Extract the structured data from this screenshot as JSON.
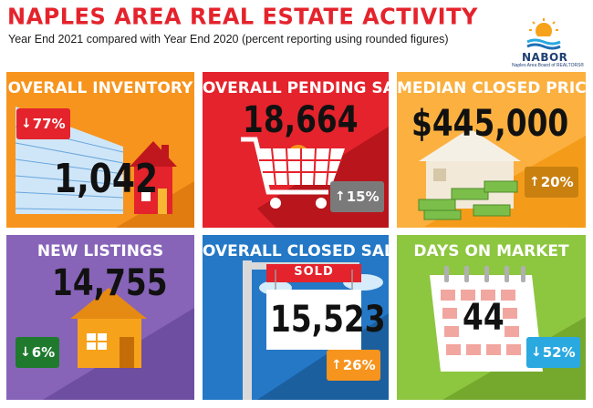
{
  "header": {
    "title": "NAPLES AREA REAL ESTATE ACTIVITY",
    "subtitle": "Year End 2021 compared with Year End 2020 (percent reporting using rounded figures)"
  },
  "logo": {
    "name": "NABOR",
    "tagline": "Naples Area Board of REALTORS®"
  },
  "tiles": {
    "inventory": {
      "title": "OVERALL INVENTORY",
      "value": "1,042",
      "change": "77%",
      "direction": "down",
      "color": "#f7941d"
    },
    "pending": {
      "title": "OVERALL PENDING SALES",
      "value": "18,664",
      "change": "15%",
      "direction": "up",
      "color": "#e4232c"
    },
    "price": {
      "title": "MEDIAN CLOSED PRICE",
      "value": "$445,000",
      "change": "20%",
      "direction": "up",
      "color": "#fbb040"
    },
    "listings": {
      "title": "NEW LISTINGS",
      "value": "14,755",
      "change": "6%",
      "direction": "down",
      "color": "#8764b8"
    },
    "closed": {
      "title": "OVERALL CLOSED SALES",
      "value": "15,523",
      "sign": "SOLD",
      "change": "26%",
      "direction": "up",
      "color": "#2478c6"
    },
    "days": {
      "title": "DAYS ON MARKET",
      "value": "44",
      "change": "52%",
      "direction": "down",
      "color": "#8dc63f"
    }
  },
  "icons": {
    "down": "↓",
    "up": "↑"
  }
}
